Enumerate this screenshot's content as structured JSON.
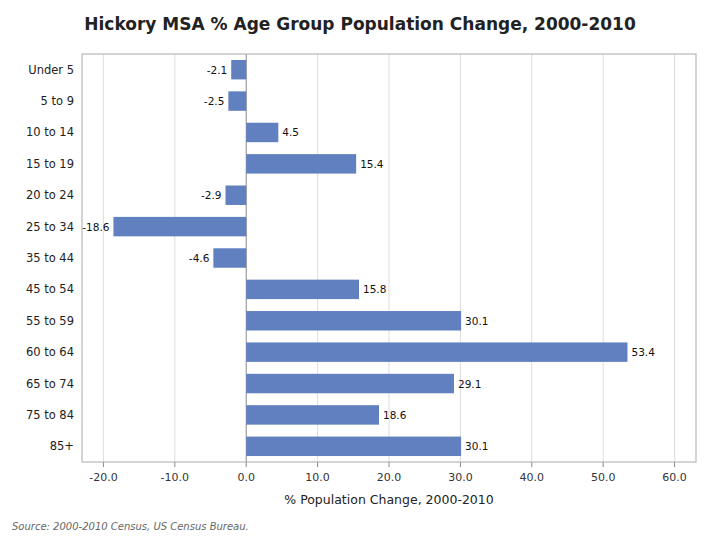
{
  "chart_data": {
    "type": "bar",
    "orientation": "horizontal",
    "title": "Hickory MSA % Age Group Population Change, 2000-2010",
    "categories": [
      "Under 5",
      "5 to 9",
      "10 to 14",
      "15 to 19",
      "20 to 24",
      "25 to 34",
      "35 to 44",
      "45 to 54",
      "55 to 59",
      "60 to 64",
      "65 to 74",
      "75 to 84",
      "85+"
    ],
    "values": [
      -2.1,
      -2.5,
      4.5,
      15.4,
      -2.9,
      -18.6,
      -4.6,
      15.8,
      30.1,
      53.4,
      29.1,
      18.6,
      30.1
    ],
    "color": "#6080C0",
    "xlabel": "% Population Change, 2000-2010",
    "xlim": [
      -23,
      63
    ],
    "xticks": [
      {
        "value": -20,
        "label": "-20.0"
      },
      {
        "value": -10,
        "label": "-10.0"
      },
      {
        "value": 0,
        "label": "0.0"
      },
      {
        "value": 10,
        "label": "10.0"
      },
      {
        "value": 20,
        "label": "20.0"
      },
      {
        "value": 30,
        "label": "30.0"
      },
      {
        "value": 40,
        "label": "40.0"
      },
      {
        "value": 50,
        "label": "50.0"
      },
      {
        "value": 60,
        "label": "60.0"
      }
    ],
    "grid": true,
    "data_labels": true,
    "annotations": [
      "Source: 2000-2010 Census, US Census Bureau."
    ]
  }
}
